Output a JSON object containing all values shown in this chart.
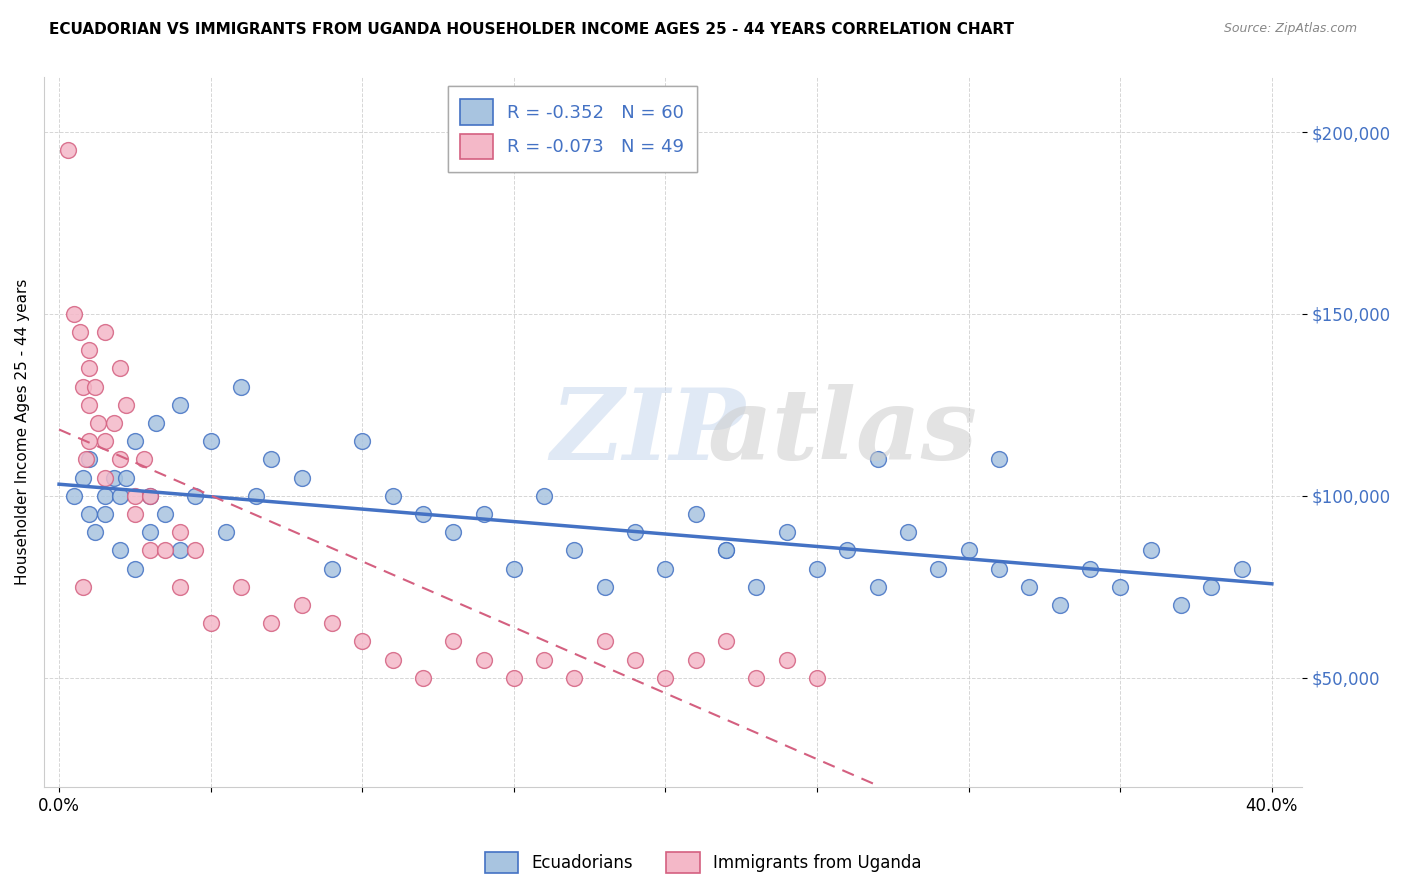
{
  "title": "ECUADORIAN VS IMMIGRANTS FROM UGANDA HOUSEHOLDER INCOME AGES 25 - 44 YEARS CORRELATION CHART",
  "source": "Source: ZipAtlas.com",
  "ylabel": "Householder Income Ages 25 - 44 years",
  "xlabel": "",
  "xlim": [
    -0.005,
    0.41
  ],
  "ylim": [
    20000,
    215000
  ],
  "yticks": [
    50000,
    100000,
    150000,
    200000
  ],
  "ytick_labels": [
    "$50,000",
    "$100,000",
    "$150,000",
    "$200,000"
  ],
  "xticks": [
    0.0,
    0.05,
    0.1,
    0.15,
    0.2,
    0.25,
    0.3,
    0.35,
    0.4
  ],
  "xtick_labels": [
    "0.0%",
    "",
    "",
    "",
    "",
    "",
    "",
    "",
    "40.0%"
  ],
  "blue_R": -0.352,
  "blue_N": 60,
  "pink_R": -0.073,
  "pink_N": 49,
  "blue_color": "#a8c4e0",
  "pink_color": "#f4b8c8",
  "blue_line_color": "#4472c4",
  "pink_line_color": "#d46080",
  "blue_x": [
    0.005,
    0.008,
    0.01,
    0.01,
    0.012,
    0.015,
    0.015,
    0.018,
    0.02,
    0.02,
    0.022,
    0.025,
    0.025,
    0.03,
    0.03,
    0.032,
    0.035,
    0.04,
    0.04,
    0.045,
    0.05,
    0.055,
    0.06,
    0.065,
    0.07,
    0.08,
    0.09,
    0.1,
    0.11,
    0.12,
    0.13,
    0.14,
    0.15,
    0.16,
    0.17,
    0.18,
    0.19,
    0.2,
    0.21,
    0.22,
    0.23,
    0.24,
    0.25,
    0.26,
    0.27,
    0.28,
    0.29,
    0.3,
    0.31,
    0.32,
    0.33,
    0.34,
    0.35,
    0.36,
    0.37,
    0.38,
    0.39,
    0.27,
    0.31,
    0.22
  ],
  "blue_y": [
    100000,
    105000,
    95000,
    110000,
    90000,
    100000,
    95000,
    105000,
    100000,
    85000,
    105000,
    80000,
    115000,
    100000,
    90000,
    120000,
    95000,
    85000,
    125000,
    100000,
    115000,
    90000,
    130000,
    100000,
    110000,
    105000,
    80000,
    115000,
    100000,
    95000,
    90000,
    95000,
    80000,
    100000,
    85000,
    75000,
    90000,
    80000,
    95000,
    85000,
    75000,
    90000,
    80000,
    85000,
    75000,
    90000,
    80000,
    85000,
    80000,
    75000,
    70000,
    80000,
    75000,
    85000,
    70000,
    75000,
    80000,
    110000,
    110000,
    85000
  ],
  "pink_x": [
    0.003,
    0.005,
    0.007,
    0.008,
    0.008,
    0.009,
    0.01,
    0.01,
    0.01,
    0.01,
    0.012,
    0.013,
    0.015,
    0.015,
    0.015,
    0.018,
    0.02,
    0.02,
    0.022,
    0.025,
    0.025,
    0.028,
    0.03,
    0.03,
    0.035,
    0.04,
    0.04,
    0.045,
    0.05,
    0.06,
    0.07,
    0.08,
    0.09,
    0.1,
    0.11,
    0.12,
    0.13,
    0.14,
    0.15,
    0.16,
    0.17,
    0.18,
    0.19,
    0.2,
    0.21,
    0.22,
    0.23,
    0.24,
    0.25
  ],
  "pink_y": [
    195000,
    150000,
    145000,
    130000,
    75000,
    110000,
    135000,
    140000,
    125000,
    115000,
    130000,
    120000,
    145000,
    105000,
    115000,
    120000,
    135000,
    110000,
    125000,
    95000,
    100000,
    110000,
    85000,
    100000,
    85000,
    90000,
    75000,
    85000,
    65000,
    75000,
    65000,
    70000,
    65000,
    60000,
    55000,
    50000,
    60000,
    55000,
    50000,
    55000,
    50000,
    60000,
    55000,
    50000,
    55000,
    60000,
    50000,
    55000,
    50000
  ]
}
